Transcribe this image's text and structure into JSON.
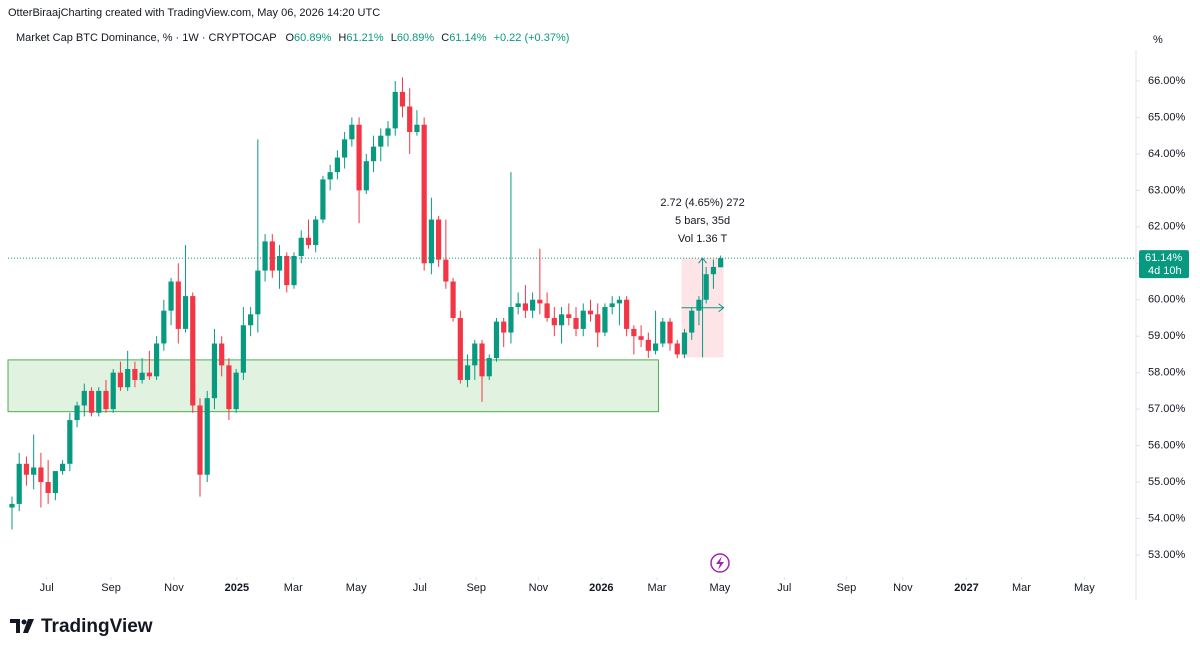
{
  "chart_data": {
    "type": "candlestick",
    "credit": "OtterBiraajCharting created with TradingView.com, May 06, 2026 14:20 UTC",
    "title": "Market Cap BTC Dominance, % · 1W · CRYPTOCAP",
    "ohlc_legend": [
      {
        "label": "O",
        "value": "60.89%"
      },
      {
        "label": "H",
        "value": "61.21%"
      },
      {
        "label": "L",
        "value": "60.89%"
      },
      {
        "label": "C",
        "value": "61.14%"
      }
    ],
    "change": "+0.22 (+0.37%)",
    "unit": "%",
    "brand": "TradingView",
    "up_color": "#089981",
    "down_color": "#f23645",
    "open": [
      54.3,
      54.4,
      55.5,
      55.2,
      55.4,
      55.0,
      54.7,
      55.3,
      55.5,
      56.7,
      57.1,
      57.5,
      56.9,
      57.5,
      57.0,
      58.0,
      57.6,
      58.1,
      57.8,
      58.0,
      57.9,
      58.8,
      59.7,
      60.5,
      59.2,
      60.1,
      57.1,
      55.2,
      57.3,
      58.8,
      58.2,
      57.0,
      58.0,
      59.3,
      59.6,
      60.8,
      61.6,
      60.8,
      61.2,
      60.4,
      61.2,
      61.7,
      61.5,
      62.2,
      63.3,
      63.5,
      63.9,
      64.4,
      64.8,
      63.0,
      63.8,
      64.2,
      64.5,
      64.7,
      65.7,
      65.3,
      64.6,
      64.8,
      61.0,
      62.2,
      61.1,
      60.5,
      59.5,
      57.8,
      58.2,
      58.8,
      57.9,
      58.4,
      59.4,
      59.1,
      59.8,
      59.9,
      59.7,
      60.0,
      59.9,
      59.5,
      59.3,
      59.6,
      59.5,
      59.2,
      59.7,
      59.6,
      59.1,
      59.8,
      59.9,
      60.0,
      59.2,
      59.0,
      58.9,
      58.6,
      58.8,
      59.4,
      58.8,
      58.5,
      59.1,
      59.7,
      60.0,
      60.7,
      60.89
    ],
    "high": [
      54.6,
      55.8,
      55.7,
      56.3,
      55.8,
      55.6,
      55.3,
      55.6,
      56.9,
      57.2,
      57.7,
      57.6,
      57.6,
      57.8,
      58.1,
      58.3,
      58.6,
      58.3,
      58.4,
      58.6,
      59.0,
      60.0,
      60.6,
      61.0,
      61.5,
      60.2,
      57.3,
      57.5,
      59.2,
      59.0,
      58.4,
      58.1,
      59.8,
      59.8,
      64.4,
      61.8,
      61.8,
      61.5,
      61.3,
      61.3,
      61.9,
      62.2,
      62.3,
      63.4,
      63.7,
      64.1,
      64.6,
      65.0,
      65.0,
      64.0,
      64.5,
      64.7,
      64.9,
      66.0,
      66.1,
      65.8,
      65.2,
      65.0,
      62.8,
      62.3,
      62.2,
      60.6,
      59.7,
      58.5,
      58.9,
      58.9,
      58.5,
      59.5,
      59.5,
      63.5,
      60.2,
      60.4,
      60.2,
      61.4,
      60.2,
      59.8,
      59.8,
      59.9,
      59.8,
      59.9,
      60.0,
      59.9,
      59.9,
      60.1,
      60.1,
      60.1,
      59.3,
      59.3,
      59.1,
      59.7,
      59.5,
      59.5,
      58.9,
      59.2,
      59.8,
      60.1,
      60.9,
      61.1,
      61.21
    ],
    "low": [
      53.7,
      54.2,
      54.9,
      54.8,
      54.3,
      54.4,
      54.5,
      55.2,
      55.3,
      56.5,
      56.8,
      56.8,
      56.8,
      56.9,
      56.9,
      57.5,
      57.5,
      57.6,
      57.7,
      57.8,
      57.8,
      58.6,
      59.3,
      58.8,
      59.1,
      56.9,
      54.6,
      55.0,
      57.0,
      57.9,
      56.7,
      56.9,
      57.8,
      59.0,
      59.1,
      60.5,
      60.6,
      60.3,
      60.2,
      60.3,
      61.0,
      61.4,
      61.3,
      62.1,
      63.0,
      63.3,
      63.6,
      64.2,
      62.1,
      62.9,
      63.5,
      63.8,
      64.2,
      64.5,
      65.0,
      64.0,
      64.5,
      60.8,
      60.7,
      60.9,
      60.3,
      59.4,
      57.7,
      57.6,
      57.8,
      57.2,
      57.8,
      58.3,
      58.7,
      58.8,
      59.6,
      59.5,
      59.5,
      59.6,
      59.4,
      59.0,
      58.8,
      59.3,
      59.0,
      59.0,
      59.4,
      58.7,
      59.0,
      59.6,
      59.3,
      59.0,
      58.5,
      58.7,
      58.4,
      58.5,
      58.7,
      58.6,
      58.4,
      58.4,
      58.9,
      59.3,
      59.9,
      60.3,
      60.89
    ],
    "close": [
      54.4,
      55.5,
      55.2,
      55.4,
      55.0,
      54.7,
      55.3,
      55.5,
      56.7,
      57.1,
      57.5,
      56.9,
      57.5,
      57.0,
      58.0,
      57.6,
      58.1,
      57.8,
      58.0,
      57.9,
      58.8,
      59.7,
      60.5,
      59.2,
      60.1,
      57.1,
      55.2,
      57.3,
      58.8,
      58.2,
      57.0,
      58.0,
      59.3,
      59.6,
      60.8,
      61.6,
      60.8,
      61.2,
      60.4,
      61.2,
      61.7,
      61.5,
      62.2,
      63.3,
      63.5,
      63.9,
      64.4,
      64.8,
      63.0,
      63.8,
      64.2,
      64.5,
      64.7,
      65.7,
      65.3,
      64.6,
      64.8,
      61.0,
      62.2,
      61.1,
      60.5,
      59.5,
      57.8,
      58.2,
      58.8,
      57.9,
      58.4,
      59.4,
      59.1,
      59.8,
      59.9,
      59.7,
      60.0,
      59.9,
      59.5,
      59.3,
      59.6,
      59.5,
      59.2,
      59.7,
      59.6,
      59.1,
      59.8,
      59.9,
      60.0,
      59.2,
      59.0,
      58.9,
      58.6,
      58.8,
      59.4,
      58.8,
      58.5,
      59.1,
      59.7,
      60.0,
      60.7,
      60.9,
      61.14
    ],
    "xlim": [
      -0.55,
      155.3
    ],
    "xticks": [
      {
        "value": 4.8,
        "label": "Jul"
      },
      {
        "value": 13.7,
        "label": "Sep"
      },
      {
        "value": 22.4,
        "label": "Nov"
      },
      {
        "value": 31.1,
        "label": "2025"
      },
      {
        "value": 38.9,
        "label": "Mar"
      },
      {
        "value": 47.6,
        "label": "May"
      },
      {
        "value": 56.4,
        "label": "Jul"
      },
      {
        "value": 64.2,
        "label": "Sep"
      },
      {
        "value": 72.8,
        "label": "Nov"
      },
      {
        "value": 81.5,
        "label": "2026"
      },
      {
        "value": 89.2,
        "label": "Mar"
      },
      {
        "value": 97.9,
        "label": "May"
      },
      {
        "value": 106.8,
        "label": "Jul"
      },
      {
        "value": 115.4,
        "label": "Sep"
      },
      {
        "value": 123.2,
        "label": "Nov"
      },
      {
        "value": 132,
        "label": "2027"
      },
      {
        "value": 139.6,
        "label": "Mar"
      },
      {
        "value": 148.3,
        "label": "May"
      }
    ],
    "ylim": [
      52.45,
      66.85
    ],
    "yticks": [
      {
        "value": 53,
        "label": "53.00%"
      },
      {
        "value": 54,
        "label": "54.00%"
      },
      {
        "value": 55,
        "label": "55.00%"
      },
      {
        "value": 56,
        "label": "56.00%"
      },
      {
        "value": 57,
        "label": "57.00%"
      },
      {
        "value": 58,
        "label": "58.00%"
      },
      {
        "value": 59,
        "label": "59.00%"
      },
      {
        "value": 60,
        "label": "60.00%"
      },
      {
        "value": 61,
        "label": "61.00%"
      },
      {
        "value": 62,
        "label": "62.00%"
      },
      {
        "value": 63,
        "label": "63.00%"
      },
      {
        "value": 64,
        "label": "64.00%"
      },
      {
        "value": 65,
        "label": "65.00%"
      },
      {
        "value": 66,
        "label": "66.00%"
      }
    ],
    "grid": false,
    "zone": {
      "x0": -0.55,
      "x1": 89.4,
      "y0": 56.93,
      "y1": 58.35,
      "color": "#4caf50"
    },
    "measure": {
      "x0": 93,
      "x1": 98,
      "y0": 58.42,
      "y1": 61.14,
      "color": "#f23645",
      "labels": [
        "2.72 (4.65%) 272",
        "5 bars, 35d",
        "Vol 1.36 T"
      ]
    },
    "price_line": {
      "value": 61.14,
      "label": "61.14%",
      "countdown": "4d 10h",
      "color": "#089981"
    }
  }
}
